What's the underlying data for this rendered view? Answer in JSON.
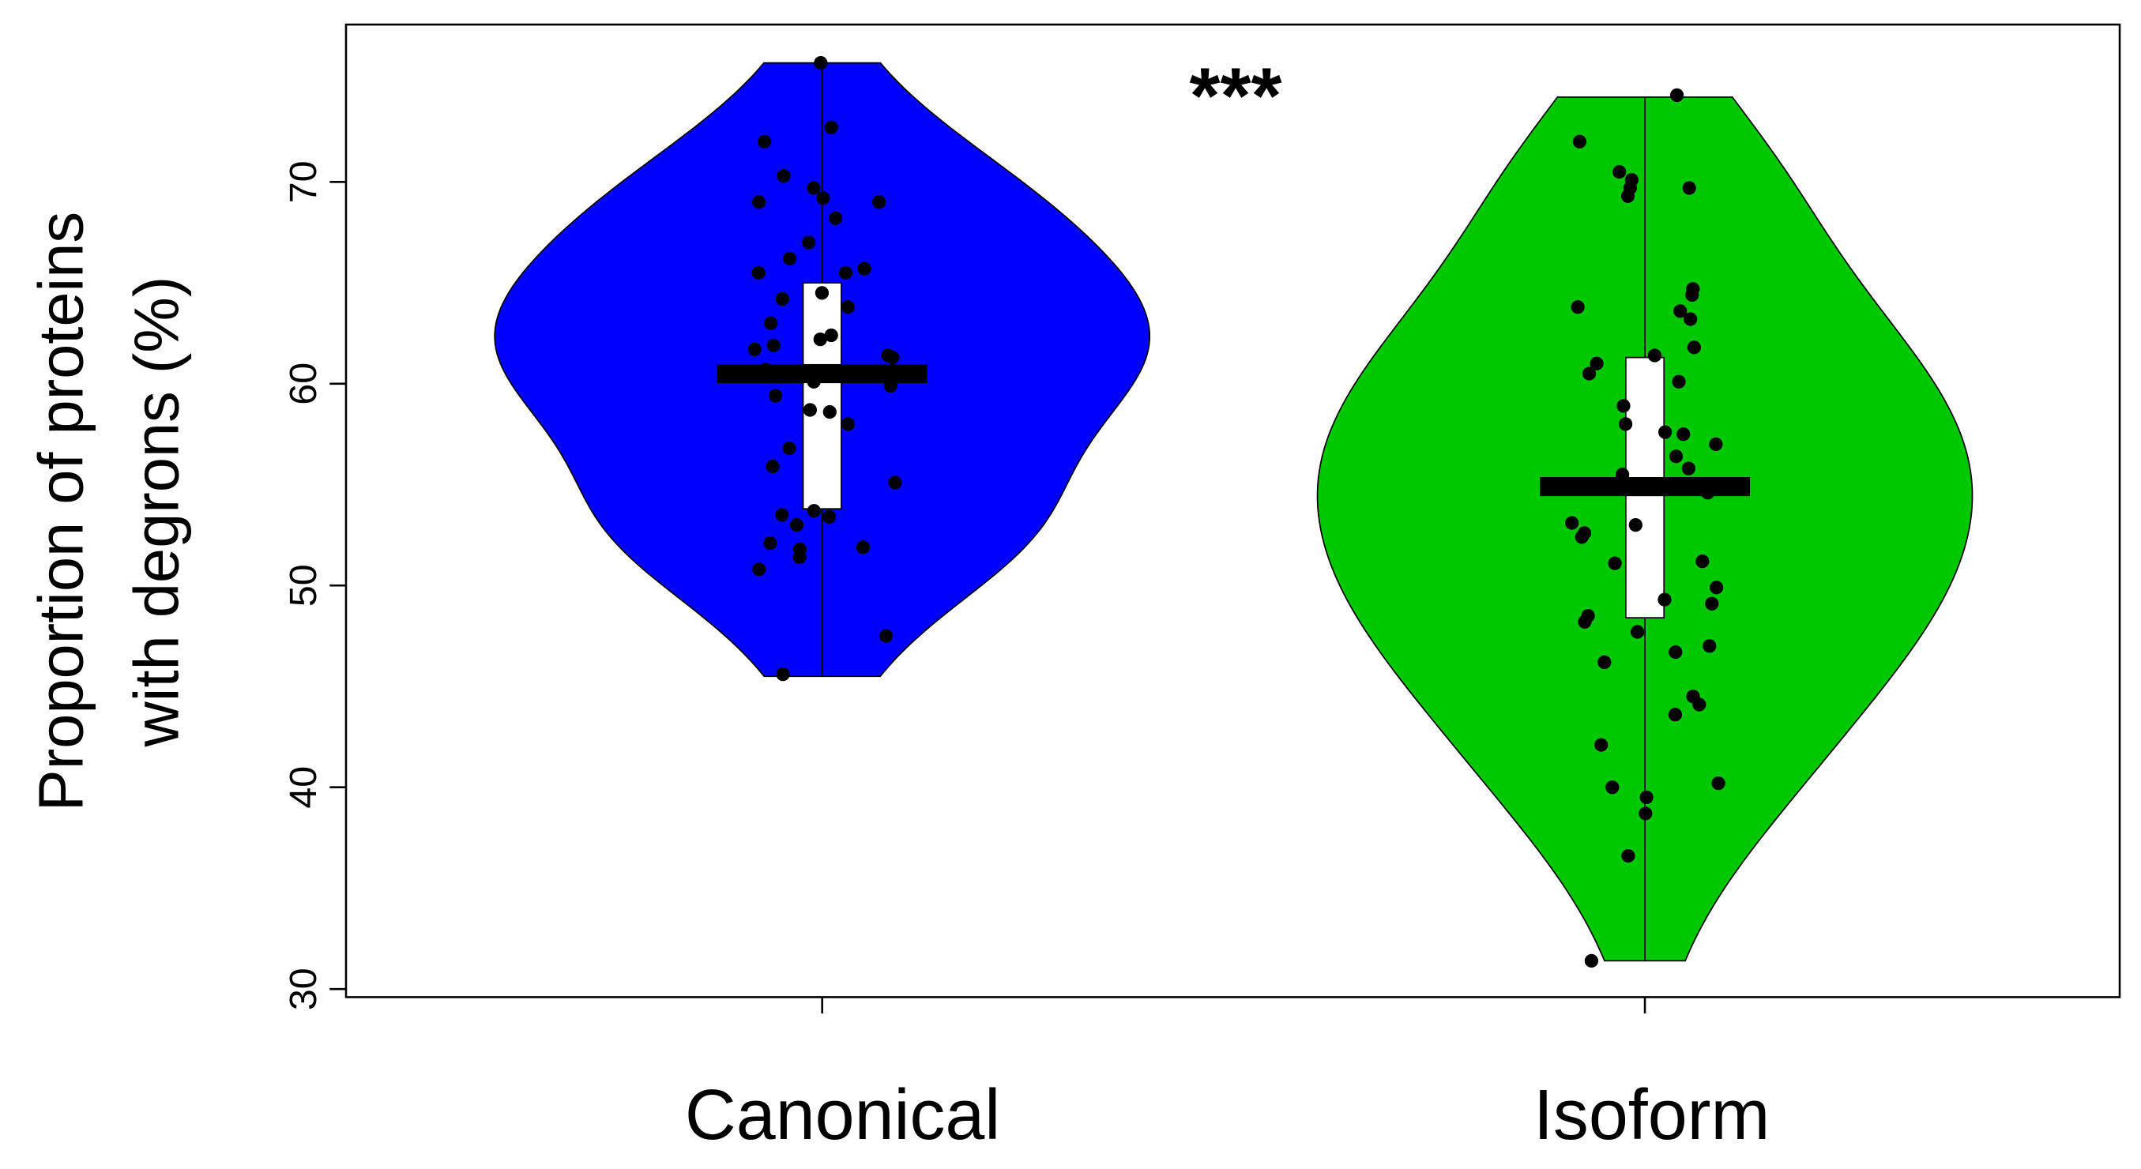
{
  "chart_data": {
    "type": "violin",
    "ylabel": [
      "Proportion of proteins",
      "with degrons (%)"
    ],
    "annotation": "***",
    "ylim": [
      29.6,
      77.8
    ],
    "yticks": [
      30,
      40,
      50,
      60,
      70
    ],
    "series": [
      {
        "name": "Canonical",
        "color": "#0000ff",
        "min": 45.5,
        "q1": 53.8,
        "median": 60.5,
        "q3": 65,
        "max": 75.9,
        "values": [
          75.9,
          72.7,
          72.0,
          70.3,
          69.7,
          69.2,
          69.0,
          69.0,
          68.2,
          67.0,
          66.2,
          65.7,
          65.5,
          65.5,
          64.5,
          64.2,
          63.8,
          63.0,
          62.4,
          62.2,
          61.9,
          61.7,
          61.4,
          61.3,
          60.7,
          60.1,
          59.9,
          59.4,
          58.7,
          58.6,
          58.0,
          56.8,
          55.9,
          55.1,
          53.7,
          53.5,
          53.4,
          53.0,
          52.1,
          51.9,
          51.8,
          51.4,
          50.8,
          47.5,
          45.6
        ]
      },
      {
        "name": "Isoform",
        "color": "#00c800",
        "min": 31.4,
        "q1": 48.4,
        "median": 54.9,
        "q3": 61.3,
        "max": 74.2,
        "values": [
          74.3,
          72.0,
          70.5,
          70.1,
          69.7,
          69.7,
          69.3,
          64.7,
          64.4,
          63.8,
          63.6,
          63.2,
          61.8,
          61.4,
          61.0,
          60.5,
          60.1,
          58.9,
          58.0,
          57.6,
          57.5,
          57.0,
          56.4,
          55.8,
          55.5,
          55.1,
          54.9,
          54.6,
          53.1,
          53.0,
          52.6,
          52.4,
          51.2,
          51.1,
          49.9,
          49.3,
          49.1,
          48.5,
          48.2,
          47.7,
          47.0,
          46.7,
          46.2,
          44.5,
          44.1,
          43.6,
          42.1,
          40.2,
          40.0,
          39.5,
          38.7,
          36.6,
          31.4
        ]
      }
    ]
  }
}
